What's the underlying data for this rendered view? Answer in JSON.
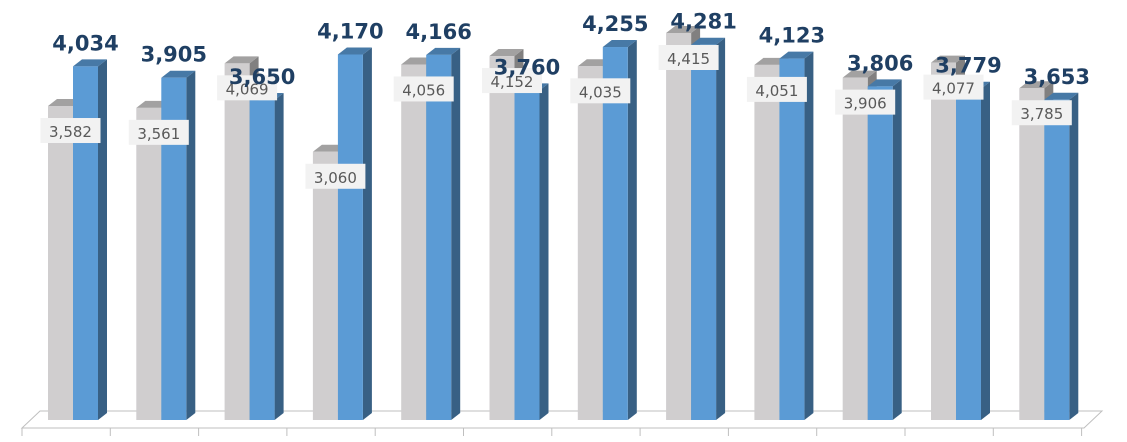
{
  "chart_data": {
    "type": "bar",
    "title": "",
    "xlabel": "",
    "ylabel": "",
    "ylim": [
      0,
      4415
    ],
    "grid": false,
    "legend": "none",
    "categories": [
      "",
      "",
      "",
      "",
      "",
      "",
      "",
      "",
      "",
      "",
      "",
      ""
    ],
    "series": [
      {
        "color": "#d0cecf",
        "values": [
          3582,
          3561,
          4069,
          3060,
          4056,
          4152,
          4035,
          4415,
          4051,
          3906,
          4077,
          3785
        ],
        "labels": [
          "3,582",
          "3,561",
          "4,069",
          "3,060",
          "4,056",
          "4,152",
          "4,035",
          "4,415",
          "4,051",
          "3,906",
          "4,077",
          "3,785"
        ]
      },
      {
        "color": "#5b9bd5",
        "values": [
          4034,
          3905,
          3650,
          4170,
          4166,
          3760,
          4255,
          4281,
          4123,
          3806,
          3779,
          3653
        ],
        "labels": [
          "4,034",
          "3,905",
          "3,650",
          "4,170",
          "4,166",
          "3,760",
          "4,255",
          "4,281",
          "4,123",
          "3,806",
          "3,779",
          "3,653"
        ]
      }
    ]
  }
}
